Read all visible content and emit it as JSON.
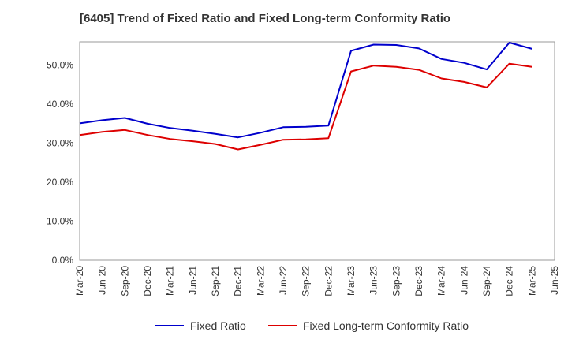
{
  "chart_data": {
    "type": "line",
    "title": "[6405]  Trend of Fixed Ratio and Fixed Long-term Conformity Ratio",
    "xlabel": "",
    "ylabel": "",
    "categories": [
      "Mar-20",
      "Jun-20",
      "Sep-20",
      "Dec-20",
      "Mar-21",
      "Jun-21",
      "Sep-21",
      "Dec-21",
      "Mar-22",
      "Jun-22",
      "Sep-22",
      "Dec-22",
      "Mar-23",
      "Jun-23",
      "Sep-23",
      "Dec-23",
      "Mar-24",
      "Jun-24",
      "Sep-24",
      "Dec-24",
      "Mar-25",
      "Jun-25"
    ],
    "ylim": [
      0,
      56
    ],
    "yticks": [
      0,
      10,
      20,
      30,
      40,
      50
    ],
    "ytick_labels": [
      "0.0%",
      "10.0%",
      "20.0%",
      "30.0%",
      "40.0%",
      "50.0%"
    ],
    "grid": true,
    "legend_position": "bottom",
    "series": [
      {
        "name": "Fixed Ratio",
        "color": "#0000cc",
        "values": [
          35.1,
          35.9,
          36.5,
          35.0,
          33.9,
          33.2,
          32.4,
          31.5,
          32.7,
          34.1,
          34.2,
          34.5,
          53.7,
          55.3,
          55.2,
          54.3,
          51.6,
          50.6,
          48.9,
          55.8,
          54.2,
          null
        ]
      },
      {
        "name": "Fixed Long-term Conformity Ratio",
        "color": "#dd0000",
        "values": [
          32.1,
          32.9,
          33.4,
          32.1,
          31.1,
          30.5,
          29.8,
          28.4,
          29.6,
          30.9,
          31.0,
          31.3,
          48.4,
          49.9,
          49.6,
          48.8,
          46.6,
          45.7,
          44.3,
          50.4,
          49.6,
          null
        ]
      }
    ]
  }
}
